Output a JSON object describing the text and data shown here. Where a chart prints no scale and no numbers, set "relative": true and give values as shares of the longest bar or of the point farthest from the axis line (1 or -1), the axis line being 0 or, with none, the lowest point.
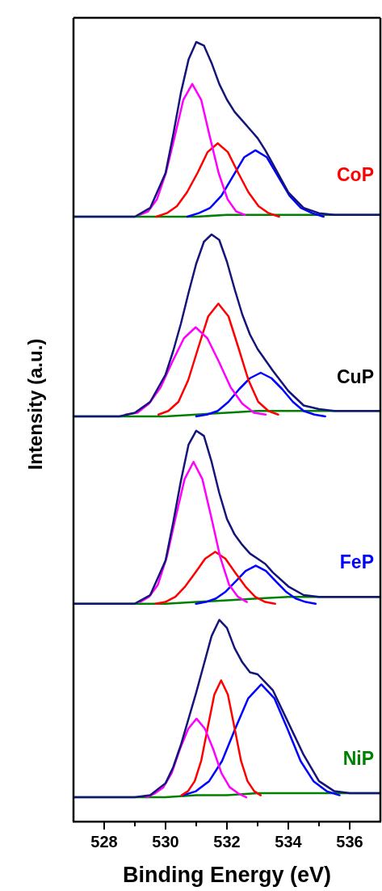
{
  "chart_data": [
    {
      "type": "line",
      "relative": true,
      "xlim": [
        527,
        537
      ],
      "tick_labels": false,
      "annotations": [
        "CoP"
      ],
      "series": [
        {
          "color": "#14147a",
          "x": [
            527,
            528,
            528.5,
            529,
            529.5,
            530,
            530.25,
            530.5,
            530.75,
            531,
            531.25,
            531.5,
            531.75,
            532,
            532.25,
            532.5,
            532.75,
            533,
            533.25,
            533.5,
            534,
            534.5,
            535,
            535.5,
            536,
            537
          ],
          "values": [
            0,
            0,
            0,
            0,
            0.05,
            0.25,
            0.47,
            0.71,
            0.9,
            1.0,
            0.98,
            0.88,
            0.76,
            0.67,
            0.6,
            0.55,
            0.5,
            0.45,
            0.38,
            0.3,
            0.14,
            0.05,
            0.02,
            0.01,
            0.01,
            0.01
          ]
        },
        {
          "color": "#ff00ff",
          "x": [
            529.15,
            529.43,
            529.72,
            530.01,
            530.3,
            530.58,
            530.87,
            531.16,
            531.44,
            531.73,
            532.02,
            532.3,
            532.59
          ],
          "values": [
            0.01,
            0.03,
            0.1,
            0.25,
            0.46,
            0.67,
            0.76,
            0.67,
            0.46,
            0.25,
            0.1,
            0.03,
            0.01
          ]
        },
        {
          "color": "#ff0000",
          "x": [
            529.7,
            530.04,
            530.37,
            530.7,
            531.04,
            531.37,
            531.7,
            532.03,
            532.37,
            532.7,
            533.03,
            533.36,
            533.7
          ],
          "values": [
            0,
            0.02,
            0.06,
            0.14,
            0.25,
            0.37,
            0.42,
            0.37,
            0.25,
            0.14,
            0.06,
            0.02,
            0
          ]
        },
        {
          "color": "#0000ff",
          "x": [
            530.71,
            531.08,
            531.45,
            531.82,
            532.19,
            532.56,
            532.93,
            533.3,
            533.67,
            534.04,
            534.41,
            534.78,
            535.15
          ],
          "values": [
            0,
            0.02,
            0.05,
            0.12,
            0.23,
            0.34,
            0.38,
            0.34,
            0.23,
            0.12,
            0.05,
            0.02,
            0
          ]
        },
        {
          "color": "#008000",
          "x": [
            527,
            529,
            530,
            531,
            532,
            533,
            534,
            535,
            537
          ],
          "values": [
            0,
            0,
            0,
            0,
            0.01,
            0.01,
            0.01,
            0.01,
            0.01
          ]
        }
      ]
    },
    {
      "type": "line",
      "relative": true,
      "ylabel": "Intensity (a.u.)",
      "xlim": [
        527,
        537
      ],
      "tick_labels": false,
      "annotations": [
        "CuP"
      ],
      "series": [
        {
          "color": "#14147a",
          "x": [
            527,
            528,
            528.5,
            529,
            529.5,
            530,
            530.25,
            530.5,
            530.75,
            531,
            531.25,
            531.5,
            531.75,
            532,
            532.25,
            532.5,
            532.75,
            533,
            533.25,
            533.5,
            534,
            534.5,
            535,
            535.5,
            536,
            537
          ],
          "values": [
            0,
            0,
            0,
            0.02,
            0.08,
            0.23,
            0.36,
            0.51,
            0.68,
            0.84,
            0.96,
            1.0,
            0.97,
            0.85,
            0.7,
            0.56,
            0.45,
            0.37,
            0.31,
            0.25,
            0.14,
            0.06,
            0.04,
            0.03,
            0.03,
            0.03
          ]
        },
        {
          "color": "#ff00ff",
          "x": [
            528.7,
            529.08,
            529.46,
            529.84,
            530.22,
            530.6,
            530.98,
            531.36,
            531.74,
            532.12,
            532.5,
            532.88,
            533.26
          ],
          "values": [
            0.01,
            0.02,
            0.07,
            0.16,
            0.3,
            0.43,
            0.49,
            0.43,
            0.3,
            0.16,
            0.07,
            0.02,
            0.01
          ]
        },
        {
          "color": "#ff0000",
          "x": [
            529.77,
            530.09,
            530.42,
            530.74,
            531.07,
            531.39,
            531.72,
            532.05,
            532.37,
            532.7,
            533.02,
            533.35,
            533.67
          ],
          "values": [
            0.01,
            0.03,
            0.08,
            0.2,
            0.38,
            0.55,
            0.62,
            0.55,
            0.38,
            0.2,
            0.08,
            0.03,
            0.01
          ]
        },
        {
          "color": "#0000ff",
          "x": [
            531.0,
            531.35,
            531.7,
            532.05,
            532.4,
            532.75,
            533.1,
            533.45,
            533.8,
            534.15,
            534.5,
            534.85,
            535.2
          ],
          "values": [
            0,
            0.01,
            0.03,
            0.08,
            0.15,
            0.21,
            0.24,
            0.21,
            0.15,
            0.08,
            0.03,
            0.01,
            0
          ]
        },
        {
          "color": "#008000",
          "x": [
            527,
            529,
            530,
            531,
            532,
            533,
            534,
            535,
            537
          ],
          "values": [
            0,
            0,
            0,
            0.01,
            0.02,
            0.03,
            0.03,
            0.03,
            0.03
          ]
        }
      ]
    },
    {
      "type": "line",
      "relative": true,
      "xlim": [
        527,
        537
      ],
      "tick_labels": false,
      "annotations": [
        "FeP"
      ],
      "series": [
        {
          "color": "#14147a",
          "x": [
            527,
            528,
            528.5,
            529,
            529.5,
            530,
            530.25,
            530.5,
            530.75,
            531,
            531.25,
            531.5,
            531.75,
            532,
            532.25,
            532.5,
            532.75,
            533,
            533.25,
            533.5,
            534,
            534.5,
            535,
            535.5,
            536,
            537
          ],
          "values": [
            0,
            0,
            0,
            0,
            0.05,
            0.25,
            0.47,
            0.71,
            0.92,
            1.0,
            0.97,
            0.82,
            0.64,
            0.49,
            0.4,
            0.34,
            0.29,
            0.26,
            0.23,
            0.18,
            0.1,
            0.05,
            0.04,
            0.04,
            0.04,
            0.04
          ]
        },
        {
          "color": "#ff00ff",
          "x": [
            529.17,
            529.46,
            529.75,
            530.04,
            530.33,
            530.62,
            530.91,
            531.2,
            531.49,
            531.78,
            532.07,
            532.36,
            532.65
          ],
          "values": [
            0.01,
            0.04,
            0.11,
            0.27,
            0.5,
            0.72,
            0.82,
            0.72,
            0.5,
            0.27,
            0.11,
            0.04,
            0.01
          ]
        },
        {
          "color": "#ff0000",
          "x": [
            529.67,
            529.99,
            530.32,
            530.64,
            530.97,
            531.29,
            531.62,
            531.95,
            532.27,
            532.6,
            532.92,
            533.25,
            533.57
          ],
          "values": [
            0,
            0.01,
            0.04,
            0.1,
            0.18,
            0.26,
            0.3,
            0.26,
            0.18,
            0.1,
            0.04,
            0.01,
            0
          ]
        },
        {
          "color": "#0000ff",
          "x": [
            530.99,
            531.31,
            531.64,
            531.96,
            532.29,
            532.61,
            532.94,
            533.27,
            533.59,
            533.92,
            534.24,
            534.57,
            534.89
          ],
          "values": [
            0,
            0.01,
            0.03,
            0.07,
            0.13,
            0.19,
            0.22,
            0.19,
            0.13,
            0.07,
            0.03,
            0.01,
            0
          ]
        },
        {
          "color": "#008000",
          "x": [
            527,
            529,
            530,
            531,
            532,
            533,
            534,
            535,
            537
          ],
          "values": [
            0,
            0,
            0,
            0.01,
            0.02,
            0.03,
            0.04,
            0.04,
            0.04
          ]
        }
      ]
    },
    {
      "type": "line",
      "relative": true,
      "xlabel": "Binding Energy (eV)",
      "xlim": [
        527,
        537
      ],
      "xticks": [
        528,
        {
          "value": 529,
          "label": null
        },
        530,
        {
          "value": 531,
          "label": null
        },
        532,
        {
          "value": 533,
          "label": null
        },
        534,
        {
          "value": 535,
          "label": null
        },
        536
      ],
      "tick_labels": "x",
      "annotations": [
        "NiP"
      ],
      "series": [
        {
          "color": "#14147a",
          "x": [
            527,
            528,
            528.5,
            529,
            529.5,
            530,
            530.25,
            530.5,
            530.75,
            531,
            531.25,
            531.5,
            531.75,
            532,
            532.25,
            532.5,
            532.75,
            533,
            533.25,
            533.5,
            534,
            534.5,
            535,
            535.5,
            536,
            537
          ],
          "values": [
            0.12,
            0.12,
            0.12,
            0.12,
            0.13,
            0.19,
            0.27,
            0.38,
            0.51,
            0.64,
            0.78,
            0.92,
            1.0,
            0.96,
            0.86,
            0.79,
            0.74,
            0.73,
            0.69,
            0.65,
            0.49,
            0.33,
            0.2,
            0.15,
            0.14,
            0.14
          ]
        },
        {
          "color": "#ff00ff",
          "x": [
            529.39,
            529.66,
            529.93,
            530.2,
            530.47,
            530.74,
            531.01,
            531.28,
            531.55,
            531.82,
            532.09,
            532.36,
            532.63
          ],
          "values": [
            0.12,
            0.14,
            0.17,
            0.24,
            0.36,
            0.46,
            0.51,
            0.46,
            0.36,
            0.24,
            0.17,
            0.14,
            0.12
          ]
        },
        {
          "color": "#ff0000",
          "x": [
            530.52,
            530.73,
            530.95,
            531.16,
            531.38,
            531.59,
            531.81,
            532.03,
            532.24,
            532.46,
            532.67,
            532.89,
            533.1
          ],
          "values": [
            0.13,
            0.15,
            0.2,
            0.3,
            0.47,
            0.63,
            0.7,
            0.63,
            0.47,
            0.3,
            0.2,
            0.15,
            0.13
          ]
        },
        {
          "color": "#0000ff",
          "x": [
            530.57,
            530.99,
            531.42,
            531.84,
            532.27,
            532.69,
            533.12,
            533.55,
            533.97,
            534.4,
            534.82,
            535.25,
            535.67
          ],
          "values": [
            0.13,
            0.15,
            0.2,
            0.3,
            0.46,
            0.61,
            0.68,
            0.61,
            0.46,
            0.3,
            0.2,
            0.15,
            0.13
          ]
        },
        {
          "color": "#008000",
          "x": [
            527,
            529,
            530,
            531,
            532,
            533,
            534,
            535,
            537
          ],
          "values": [
            0.12,
            0.12,
            0.12,
            0.13,
            0.13,
            0.14,
            0.14,
            0.14,
            0.14
          ]
        }
      ]
    }
  ]
}
